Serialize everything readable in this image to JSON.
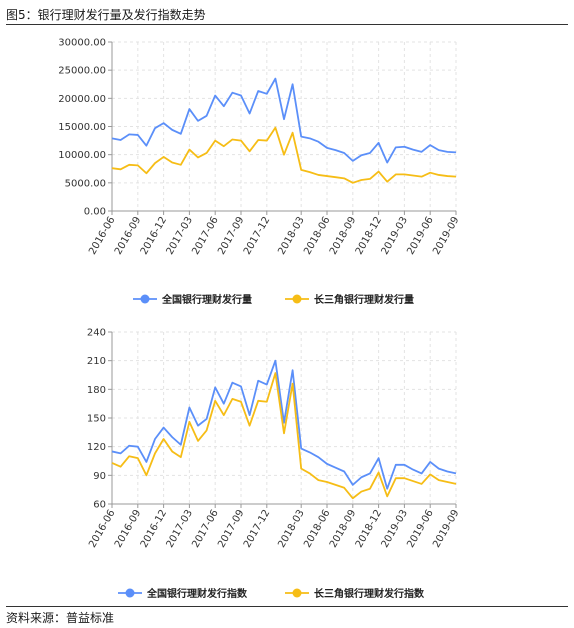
{
  "figure": {
    "title": "图5：银行理财发行量及发行指数走势",
    "source": "资料来源：普益标准"
  },
  "colors": {
    "blue": "#5b8ff9",
    "yellow": "#f6bd16"
  },
  "chart_data": [
    {
      "type": "line",
      "x": [
        "2016-06",
        "2016-07",
        "2016-08",
        "2016-09",
        "2016-10",
        "2016-11",
        "2016-12",
        "2017-01",
        "2017-02",
        "2017-03",
        "2017-04",
        "2017-05",
        "2017-06",
        "2017-07",
        "2017-08",
        "2017-09",
        "2017-10",
        "2017-11",
        "2017-12",
        "2017-12b",
        "2018-01",
        "2018-02",
        "2018-03",
        "2018-04",
        "2018-05",
        "2018-06",
        "2018-07",
        "2018-08",
        "2018-09",
        "2018-10",
        "2018-11",
        "2018-12",
        "2019-01",
        "2019-02",
        "2019-03",
        "2019-04",
        "2019-05",
        "2019-06",
        "2019-07",
        "2019-08",
        "2019-09"
      ],
      "xtick_labels": [
        "2016-06",
        "2016-09",
        "2016-12",
        "2017-03",
        "2017-06",
        "2017-09",
        "2017-12",
        "2018-03",
        "2018-06",
        "2018-09",
        "2018-12",
        "2019-03",
        "2019-06",
        "2019-09"
      ],
      "yticks": [
        "0.00",
        "5000.00",
        "10000.00",
        "15000.00",
        "20000.00",
        "25000.00",
        "30000.00"
      ],
      "ylim": [
        0,
        30000
      ],
      "series": [
        {
          "name": "全国银行理财发行量",
          "color": "#5b8ff9",
          "values": [
            12900,
            12600,
            13600,
            13500,
            11600,
            14700,
            15600,
            14400,
            13700,
            18100,
            16000,
            16900,
            20500,
            18600,
            21000,
            20500,
            17300,
            21300,
            20800,
            23500,
            16300,
            22500,
            13200,
            12900,
            12300,
            11200,
            10800,
            10300,
            8900,
            9900,
            10300,
            12100,
            8600,
            11300,
            11400,
            10900,
            10500,
            11700,
            10800,
            10500,
            10400
          ]
        },
        {
          "name": "长三角银行理财发行量",
          "color": "#f6bd16",
          "values": [
            7600,
            7400,
            8200,
            8100,
            6700,
            8500,
            9600,
            8600,
            8200,
            10900,
            9500,
            10300,
            12500,
            11500,
            12700,
            12500,
            10600,
            12600,
            12500,
            14800,
            10000,
            13900,
            7300,
            6900,
            6400,
            6200,
            6000,
            5800,
            5000,
            5500,
            5700,
            7000,
            5200,
            6500,
            6500,
            6300,
            6100,
            6800,
            6400,
            6200,
            6100
          ]
        }
      ]
    },
    {
      "type": "line",
      "x": [
        "2016-06",
        "2016-07",
        "2016-08",
        "2016-09",
        "2016-10",
        "2016-11",
        "2016-12",
        "2017-01",
        "2017-02",
        "2017-03",
        "2017-04",
        "2017-05",
        "2017-06",
        "2017-07",
        "2017-08",
        "2017-09",
        "2017-10",
        "2017-11",
        "2017-12",
        "2017-12b",
        "2018-01",
        "2018-02",
        "2018-03",
        "2018-04",
        "2018-05",
        "2018-06",
        "2018-07",
        "2018-08",
        "2018-09",
        "2018-10",
        "2018-11",
        "2018-12",
        "2019-01",
        "2019-02",
        "2019-03",
        "2019-04",
        "2019-05",
        "2019-06",
        "2019-07",
        "2019-08",
        "2019-09"
      ],
      "xtick_labels": [
        "2016-06",
        "2016-09",
        "2016-12",
        "2017-03",
        "2017-06",
        "2017-09",
        "2017-12",
        "2018-03",
        "2018-06",
        "2018-09",
        "2018-12",
        "2019-03",
        "2019-06",
        "2019-09"
      ],
      "yticks": [
        "60",
        "90",
        "120",
        "150",
        "180",
        "210",
        "240"
      ],
      "ylim": [
        60,
        240
      ],
      "series": [
        {
          "name": "全国银行理财发行指数",
          "color": "#5b8ff9",
          "values": [
            115,
            113,
            121,
            120,
            104,
            128,
            140,
            130,
            122,
            161,
            142,
            149,
            182,
            165,
            187,
            183,
            153,
            189,
            185,
            210,
            145,
            200,
            118,
            114,
            109,
            102,
            98,
            94,
            80,
            88,
            92,
            108,
            76,
            101,
            101,
            96,
            92,
            104,
            97,
            94,
            92
          ]
        },
        {
          "name": "长三角银行理财发行指数",
          "color": "#f6bd16",
          "values": [
            103,
            99,
            110,
            108,
            90,
            113,
            128,
            115,
            109,
            146,
            126,
            137,
            168,
            153,
            170,
            167,
            142,
            168,
            167,
            197,
            134,
            186,
            97,
            92,
            85,
            83,
            80,
            77,
            66,
            73,
            76,
            93,
            68,
            87,
            87,
            84,
            81,
            91,
            85,
            83,
            81
          ]
        }
      ]
    }
  ]
}
